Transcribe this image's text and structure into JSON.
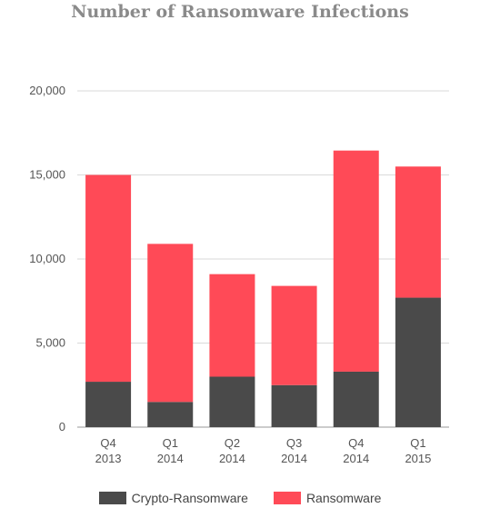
{
  "chart_data": {
    "type": "bar",
    "stacked": true,
    "title": "Number of Ransomware Infections",
    "categories": [
      [
        "Q4",
        "2013"
      ],
      [
        "Q1",
        "2014"
      ],
      [
        "Q2",
        "2014"
      ],
      [
        "Q3",
        "2014"
      ],
      [
        "Q4",
        "2014"
      ],
      [
        "Q1",
        "2015"
      ]
    ],
    "series": [
      {
        "name": "Crypto-Ransomware",
        "color": "#4a4a4a",
        "values": [
          2700,
          1500,
          3000,
          2500,
          3300,
          7700
        ]
      },
      {
        "name": "Ransomware",
        "color": "#ff4a57",
        "values": [
          12300,
          9400,
          6100,
          5900,
          13150,
          7800
        ]
      }
    ],
    "ylim": [
      0,
      20000
    ],
    "yticks": [
      "0",
      "5,000",
      "10,000",
      "15,000",
      "20,000"
    ],
    "grid": true,
    "legend_position": "bottom"
  }
}
